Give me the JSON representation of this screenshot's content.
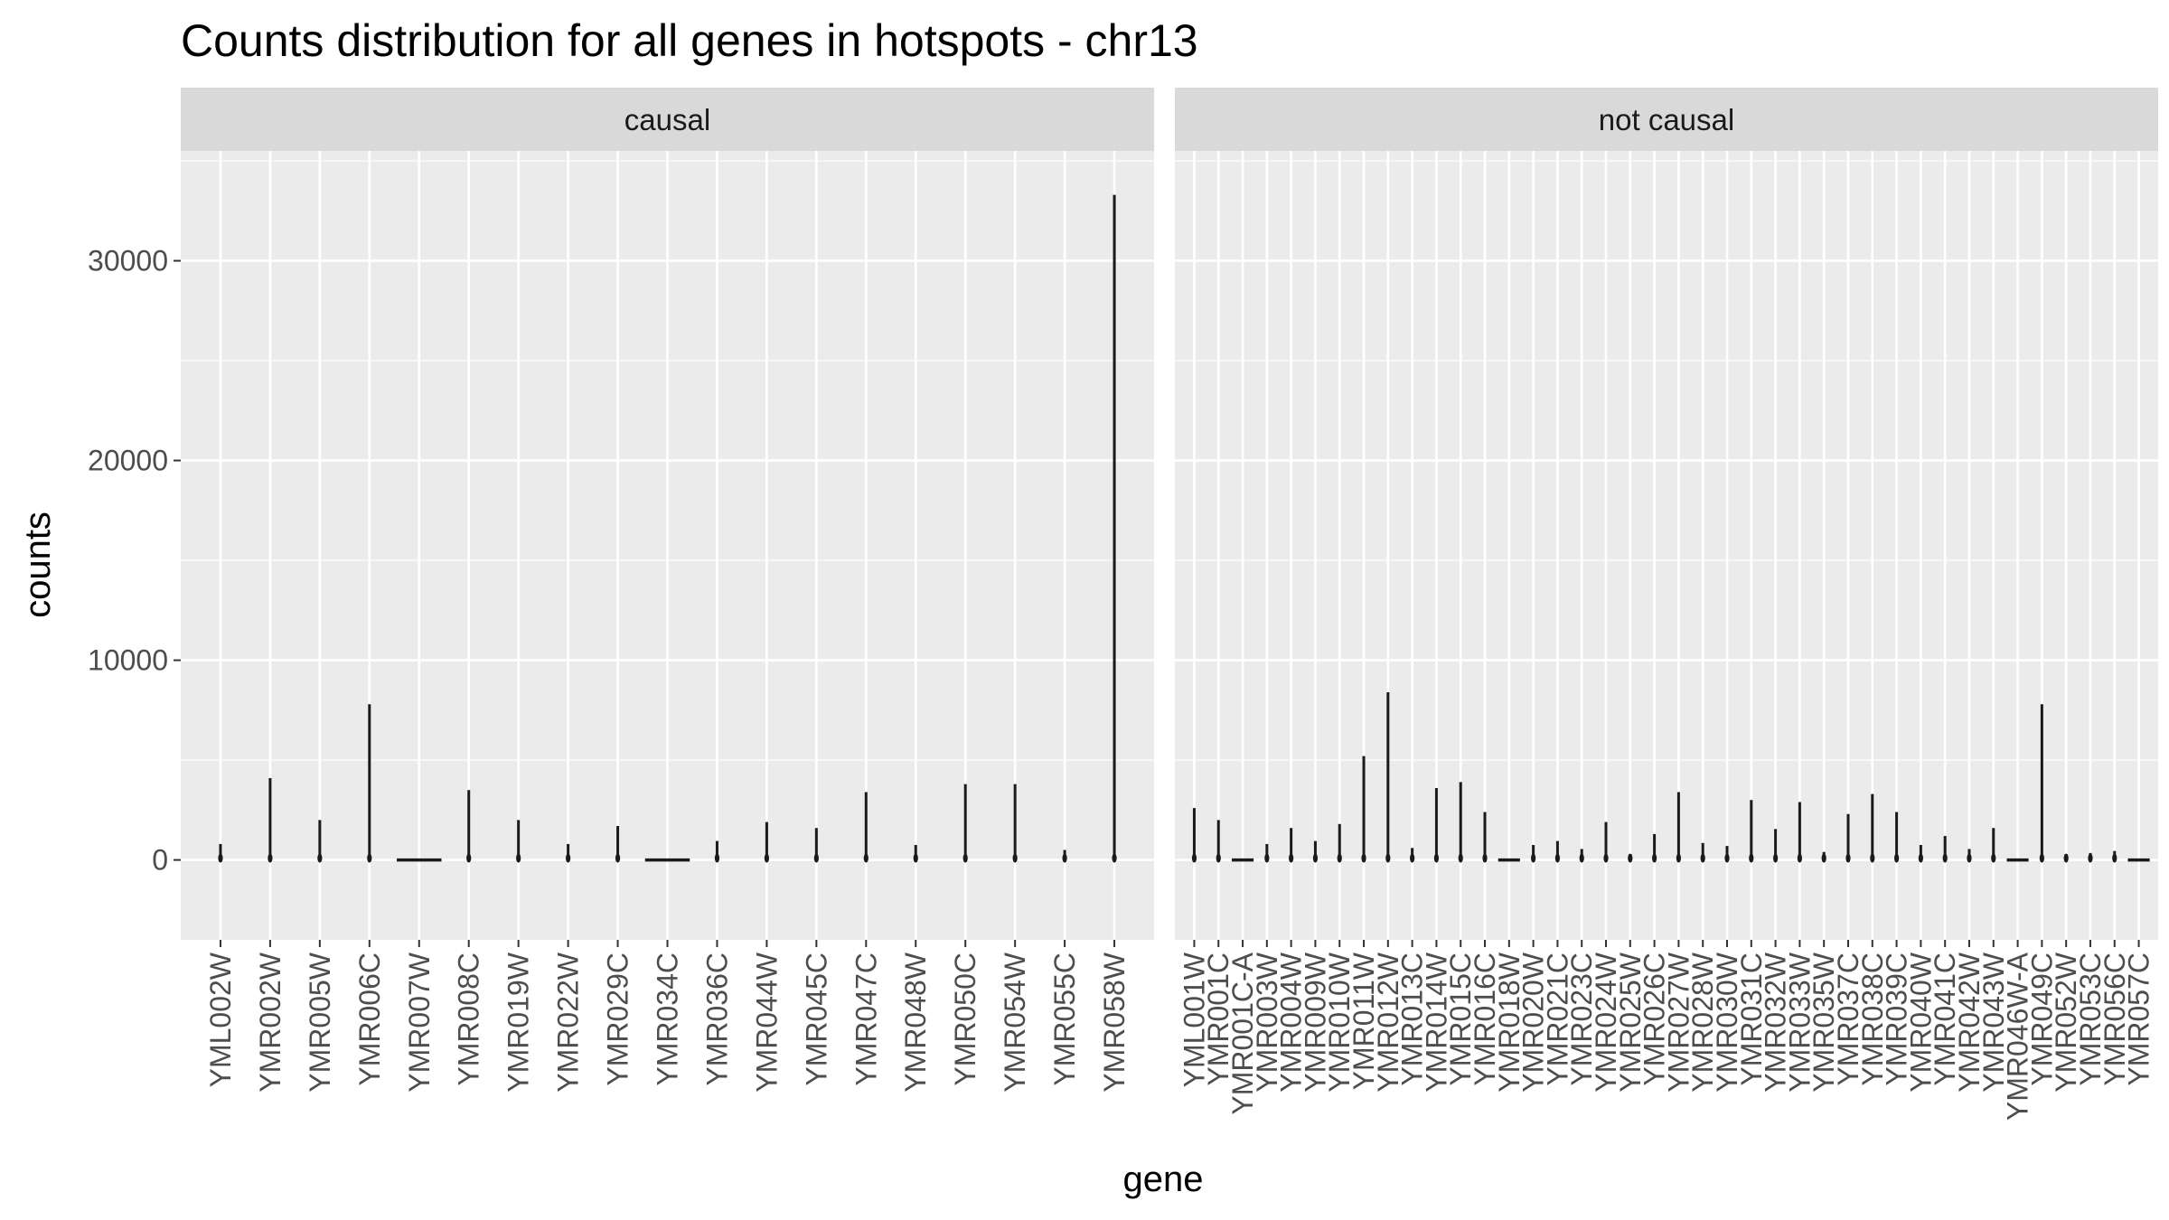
{
  "chart_data": {
    "type": "violin",
    "title": "Counts distribution for all genes in hotspots - chr13",
    "xlabel": "gene",
    "ylabel": "counts",
    "ylim": [
      -4000,
      35500
    ],
    "yticks": [
      0,
      10000,
      20000,
      30000
    ],
    "grid": true,
    "panels": [
      {
        "name": "causal",
        "genes": [
          {
            "gene": "YML002W",
            "min": 0,
            "max": 800
          },
          {
            "gene": "YMR002W",
            "min": 0,
            "max": 4100
          },
          {
            "gene": "YMR005W",
            "min": 0,
            "max": 2000
          },
          {
            "gene": "YMR006C",
            "min": 0,
            "max": 7800
          },
          {
            "gene": "YMR007W",
            "min": 0,
            "max": 50
          },
          {
            "gene": "YMR008C",
            "min": 0,
            "max": 3500
          },
          {
            "gene": "YMR019W",
            "min": 0,
            "max": 2000
          },
          {
            "gene": "YMR022W",
            "min": 0,
            "max": 800
          },
          {
            "gene": "YMR029C",
            "min": 0,
            "max": 1700
          },
          {
            "gene": "YMR034C",
            "min": 0,
            "max": 250
          },
          {
            "gene": "YMR036C",
            "min": 0,
            "max": 950
          },
          {
            "gene": "YMR044W",
            "min": 0,
            "max": 1900
          },
          {
            "gene": "YMR045C",
            "min": 0,
            "max": 1600
          },
          {
            "gene": "YMR047C",
            "min": 0,
            "max": 3400
          },
          {
            "gene": "YMR048W",
            "min": 0,
            "max": 750
          },
          {
            "gene": "YMR050C",
            "min": 0,
            "max": 3800
          },
          {
            "gene": "YMR054W",
            "min": 0,
            "max": 3800
          },
          {
            "gene": "YMR055C",
            "min": 0,
            "max": 500
          },
          {
            "gene": "YMR058W",
            "min": 0,
            "max": 33300
          }
        ]
      },
      {
        "name": "not causal",
        "genes": [
          {
            "gene": "YML001W",
            "min": 0,
            "max": 2600
          },
          {
            "gene": "YMR001C",
            "min": 0,
            "max": 2000
          },
          {
            "gene": "YMR001C-A",
            "min": 0,
            "max": 50
          },
          {
            "gene": "YMR003W",
            "min": 0,
            "max": 800
          },
          {
            "gene": "YMR004W",
            "min": 0,
            "max": 1600
          },
          {
            "gene": "YMR009W",
            "min": 0,
            "max": 950
          },
          {
            "gene": "YMR010W",
            "min": 0,
            "max": 1800
          },
          {
            "gene": "YMR011W",
            "min": 0,
            "max": 5200
          },
          {
            "gene": "YMR012W",
            "min": 0,
            "max": 8400
          },
          {
            "gene": "YMR013C",
            "min": 0,
            "max": 600
          },
          {
            "gene": "YMR014W",
            "min": 0,
            "max": 3600
          },
          {
            "gene": "YMR015C",
            "min": 0,
            "max": 3900
          },
          {
            "gene": "YMR016C",
            "min": 0,
            "max": 2400
          },
          {
            "gene": "YMR018W",
            "min": 0,
            "max": 100
          },
          {
            "gene": "YMR020W",
            "min": 0,
            "max": 750
          },
          {
            "gene": "YMR021C",
            "min": 0,
            "max": 950
          },
          {
            "gene": "YMR023C",
            "min": 0,
            "max": 550
          },
          {
            "gene": "YMR024W",
            "min": 0,
            "max": 1900
          },
          {
            "gene": "YMR025W",
            "min": 0,
            "max": 300
          },
          {
            "gene": "YMR026C",
            "min": 0,
            "max": 1300
          },
          {
            "gene": "YMR027W",
            "min": 0,
            "max": 3400
          },
          {
            "gene": "YMR028W",
            "min": 0,
            "max": 850
          },
          {
            "gene": "YMR030W",
            "min": 0,
            "max": 700
          },
          {
            "gene": "YMR031C",
            "min": 0,
            "max": 3000
          },
          {
            "gene": "YMR032W",
            "min": 0,
            "max": 1550
          },
          {
            "gene": "YMR033W",
            "min": 0,
            "max": 2900
          },
          {
            "gene": "YMR035W",
            "min": 0,
            "max": 400
          },
          {
            "gene": "YMR037C",
            "min": 0,
            "max": 2300
          },
          {
            "gene": "YMR038C",
            "min": 0,
            "max": 3300
          },
          {
            "gene": "YMR039C",
            "min": 0,
            "max": 2400
          },
          {
            "gene": "YMR040W",
            "min": 0,
            "max": 750
          },
          {
            "gene": "YMR041C",
            "min": 0,
            "max": 1200
          },
          {
            "gene": "YMR042W",
            "min": 0,
            "max": 550
          },
          {
            "gene": "YMR043W",
            "min": 0,
            "max": 1600
          },
          {
            "gene": "YMR046W-A",
            "min": 0,
            "max": 60
          },
          {
            "gene": "YMR049C",
            "min": 0,
            "max": 7800
          },
          {
            "gene": "YMR052W",
            "min": 0,
            "max": 300
          },
          {
            "gene": "YMR053C",
            "min": 0,
            "max": 350
          },
          {
            "gene": "YMR056C",
            "min": 0,
            "max": 450
          },
          {
            "gene": "YMR057C",
            "min": 0,
            "max": 50
          }
        ]
      }
    ]
  },
  "colors": {
    "panel_bg": "#ebebeb",
    "grid": "#ffffff",
    "strip_bg": "#d9d9d9",
    "mark": "#1a1a1a",
    "tick": "#333333"
  }
}
